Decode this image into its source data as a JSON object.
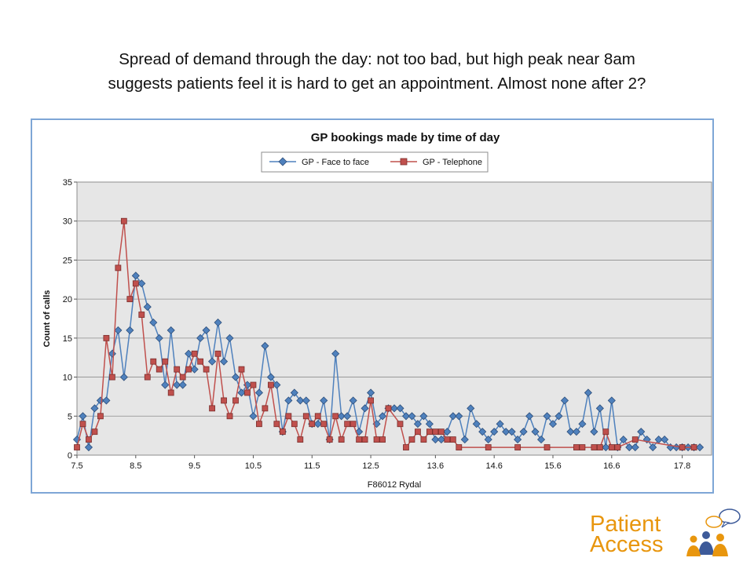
{
  "slide": {
    "title_line1": "Spread of demand through the day:  not too bad, but high peak near 8am",
    "title_line2": "suggests patients feel it is hard to get an appointment.  Almost none after 2?"
  },
  "logo": {
    "line1": "Patient",
    "line2": "Access"
  },
  "colors": {
    "face_to_face": "#4f81bd",
    "telephone": "#c0504d",
    "plot_bg": "#e6e6e6",
    "frame": "#7ea6d6",
    "logo_orange": "#e8960e",
    "logo_blue": "#3d5a99"
  },
  "chart_data": {
    "type": "line",
    "title": "GP bookings made by time of day",
    "xlabel": "F86012 Rydal",
    "ylabel": "Count of calls",
    "xlim": [
      7.5,
      18.3
    ],
    "ylim": [
      0,
      35
    ],
    "yticks": [
      0,
      5,
      10,
      15,
      20,
      25,
      30,
      35
    ],
    "xticks": [
      "7.5",
      "8.5",
      "9.5",
      "10.5",
      "11.5",
      "12.5",
      "13.6",
      "14.6",
      "15.6",
      "16.6",
      "17.8"
    ],
    "grid": "horizontal",
    "legend_position": "top-center",
    "series": [
      {
        "name": "GP - Face to face",
        "marker": "diamond",
        "points": [
          [
            7.5,
            2
          ],
          [
            7.6,
            5
          ],
          [
            7.7,
            1
          ],
          [
            7.8,
            6
          ],
          [
            7.9,
            7
          ],
          [
            8.0,
            7
          ],
          [
            8.1,
            13
          ],
          [
            8.2,
            16
          ],
          [
            8.3,
            10
          ],
          [
            8.4,
            16
          ],
          [
            8.5,
            23
          ],
          [
            8.6,
            22
          ],
          [
            8.7,
            19
          ],
          [
            8.8,
            17
          ],
          [
            8.9,
            15
          ],
          [
            9.0,
            9
          ],
          [
            9.1,
            16
          ],
          [
            9.2,
            9
          ],
          [
            9.3,
            9
          ],
          [
            9.4,
            13
          ],
          [
            9.5,
            11
          ],
          [
            9.6,
            15
          ],
          [
            9.7,
            16
          ],
          [
            9.8,
            12
          ],
          [
            9.9,
            17
          ],
          [
            10.0,
            12
          ],
          [
            10.1,
            15
          ],
          [
            10.2,
            10
          ],
          [
            10.3,
            8
          ],
          [
            10.4,
            9
          ],
          [
            10.5,
            5
          ],
          [
            10.6,
            8
          ],
          [
            10.7,
            14
          ],
          [
            10.8,
            10
          ],
          [
            10.9,
            9
          ],
          [
            11.0,
            3
          ],
          [
            11.1,
            7
          ],
          [
            11.2,
            8
          ],
          [
            11.3,
            7
          ],
          [
            11.4,
            7
          ],
          [
            11.5,
            4
          ],
          [
            11.6,
            4
          ],
          [
            11.7,
            7
          ],
          [
            11.8,
            2
          ],
          [
            11.9,
            13
          ],
          [
            12.0,
            5
          ],
          [
            12.1,
            5
          ],
          [
            12.2,
            7
          ],
          [
            12.3,
            3
          ],
          [
            12.4,
            6
          ],
          [
            12.5,
            8
          ],
          [
            12.6,
            4
          ],
          [
            12.7,
            5
          ],
          [
            12.8,
            6
          ],
          [
            12.9,
            6
          ],
          [
            13.0,
            6
          ],
          [
            13.1,
            5
          ],
          [
            13.2,
            5
          ],
          [
            13.3,
            4
          ],
          [
            13.4,
            5
          ],
          [
            13.5,
            4
          ],
          [
            13.6,
            2
          ],
          [
            13.7,
            2
          ],
          [
            13.8,
            3
          ],
          [
            13.9,
            5
          ],
          [
            14.0,
            5
          ],
          [
            14.1,
            2
          ],
          [
            14.2,
            6
          ],
          [
            14.3,
            4
          ],
          [
            14.4,
            3
          ],
          [
            14.5,
            2
          ],
          [
            14.6,
            3
          ],
          [
            14.7,
            4
          ],
          [
            14.8,
            3
          ],
          [
            14.9,
            3
          ],
          [
            15.0,
            2
          ],
          [
            15.1,
            3
          ],
          [
            15.2,
            5
          ],
          [
            15.3,
            3
          ],
          [
            15.4,
            2
          ],
          [
            15.5,
            5
          ],
          [
            15.6,
            4
          ],
          [
            15.7,
            5
          ],
          [
            15.8,
            7
          ],
          [
            15.9,
            3
          ],
          [
            16.0,
            3
          ],
          [
            16.1,
            4
          ],
          [
            16.2,
            8
          ],
          [
            16.3,
            3
          ],
          [
            16.4,
            6
          ],
          [
            16.5,
            1
          ],
          [
            16.6,
            7
          ],
          [
            16.7,
            1
          ],
          [
            16.8,
            2
          ],
          [
            16.9,
            1
          ],
          [
            17.0,
            1
          ],
          [
            17.1,
            3
          ],
          [
            17.2,
            2
          ],
          [
            17.3,
            1
          ],
          [
            17.4,
            2
          ],
          [
            17.5,
            2
          ],
          [
            17.6,
            1
          ],
          [
            17.7,
            1
          ],
          [
            17.8,
            1
          ],
          [
            17.9,
            1
          ],
          [
            18.0,
            1
          ],
          [
            18.1,
            1
          ]
        ]
      },
      {
        "name": "GP - Telephone",
        "marker": "square",
        "points": [
          [
            7.5,
            1
          ],
          [
            7.6,
            4
          ],
          [
            7.7,
            2
          ],
          [
            7.8,
            3
          ],
          [
            7.9,
            5
          ],
          [
            8.0,
            15
          ],
          [
            8.1,
            10
          ],
          [
            8.2,
            24
          ],
          [
            8.3,
            30
          ],
          [
            8.4,
            20
          ],
          [
            8.5,
            22
          ],
          [
            8.6,
            18
          ],
          [
            8.7,
            10
          ],
          [
            8.8,
            12
          ],
          [
            8.9,
            11
          ],
          [
            9.0,
            12
          ],
          [
            9.1,
            8
          ],
          [
            9.2,
            11
          ],
          [
            9.3,
            10
          ],
          [
            9.4,
            11
          ],
          [
            9.5,
            13
          ],
          [
            9.6,
            12
          ],
          [
            9.7,
            11
          ],
          [
            9.8,
            6
          ],
          [
            9.9,
            13
          ],
          [
            10.0,
            7
          ],
          [
            10.1,
            5
          ],
          [
            10.2,
            7
          ],
          [
            10.3,
            11
          ],
          [
            10.4,
            8
          ],
          [
            10.5,
            9
          ],
          [
            10.6,
            4
          ],
          [
            10.7,
            6
          ],
          [
            10.8,
            9
          ],
          [
            10.9,
            4
          ],
          [
            11.0,
            3
          ],
          [
            11.1,
            5
          ],
          [
            11.2,
            4
          ],
          [
            11.3,
            2
          ],
          [
            11.4,
            5
          ],
          [
            11.5,
            4
          ],
          [
            11.6,
            5
          ],
          [
            11.7,
            4
          ],
          [
            11.8,
            2
          ],
          [
            11.9,
            5
          ],
          [
            12.0,
            2
          ],
          [
            12.1,
            4
          ],
          [
            12.2,
            4
          ],
          [
            12.3,
            2
          ],
          [
            12.4,
            2
          ],
          [
            12.5,
            7
          ],
          [
            12.6,
            2
          ],
          [
            12.7,
            2
          ],
          [
            12.8,
            6
          ],
          [
            13.0,
            4
          ],
          [
            13.1,
            1
          ],
          [
            13.2,
            2
          ],
          [
            13.3,
            3
          ],
          [
            13.4,
            2
          ],
          [
            13.5,
            3
          ],
          [
            13.6,
            3
          ],
          [
            13.7,
            3
          ],
          [
            13.8,
            2
          ],
          [
            13.9,
            2
          ],
          [
            14.0,
            1
          ],
          [
            14.5,
            1
          ],
          [
            15.0,
            1
          ],
          [
            15.5,
            1
          ],
          [
            16.0,
            1
          ],
          [
            16.1,
            1
          ],
          [
            16.3,
            1
          ],
          [
            16.4,
            1
          ],
          [
            16.5,
            3
          ],
          [
            16.6,
            1
          ],
          [
            16.7,
            1
          ],
          [
            17.0,
            2
          ],
          [
            17.8,
            1
          ],
          [
            18.0,
            1
          ]
        ]
      }
    ]
  }
}
